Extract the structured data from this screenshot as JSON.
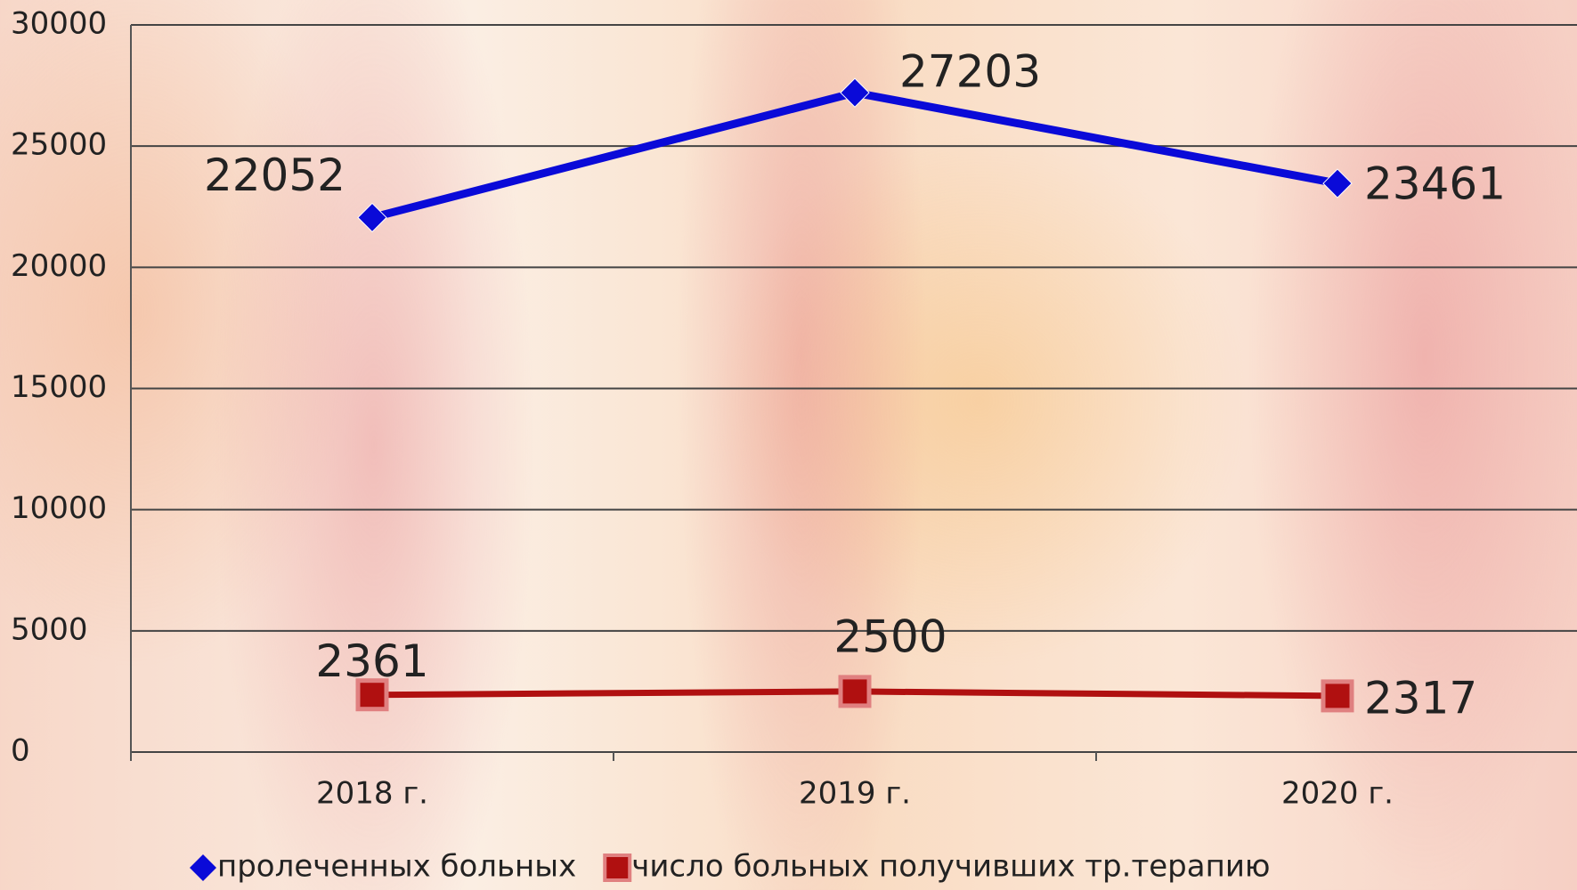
{
  "chart_data": {
    "type": "line",
    "categories": [
      "2018 г.",
      "2019 г.",
      "2020 г."
    ],
    "series": [
      {
        "name": "пролеченных больных",
        "color": "#0a0ad8",
        "values": [
          22052,
          27203,
          23461
        ]
      },
      {
        "name": "число больных получивших тр.терапию",
        "color": "#b01010",
        "values": [
          2361,
          2500,
          2317
        ]
      }
    ],
    "ylim": [
      0,
      30000
    ],
    "yticks": [
      0,
      5000,
      10000,
      15000,
      20000,
      25000,
      30000
    ],
    "grid": true
  }
}
